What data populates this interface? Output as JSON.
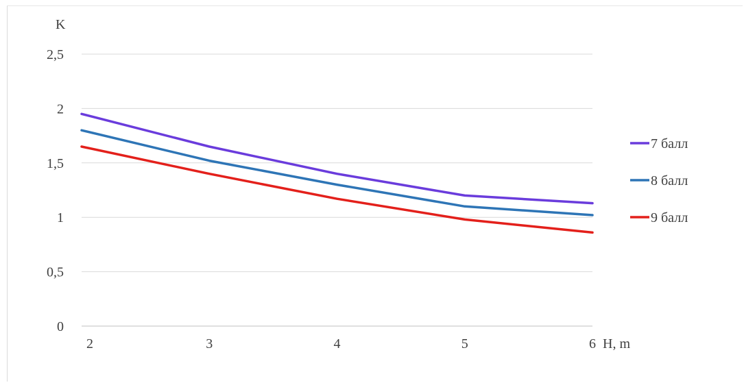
{
  "chart_data": {
    "type": "line",
    "ylabel": "K",
    "xlabel": "H, m",
    "x": [
      2,
      3,
      4,
      5,
      6
    ],
    "x_tick_labels": [
      "2",
      "3",
      "4",
      "5",
      "6"
    ],
    "y_tick_labels": [
      "0",
      "0,5",
      "1",
      "1,5",
      "2",
      "2,5"
    ],
    "y_ticks": [
      0,
      0.5,
      1,
      1.5,
      2,
      2.5
    ],
    "ylim": [
      0,
      2.5
    ],
    "grid": "horizontal",
    "legend_position": "right",
    "series": [
      {
        "name": "7 балл",
        "color": "#6a3cdc",
        "values": [
          1.95,
          1.65,
          1.4,
          1.2,
          1.13
        ]
      },
      {
        "name": "8 балл",
        "color": "#2e75b6",
        "values": [
          1.8,
          1.52,
          1.3,
          1.1,
          1.02
        ]
      },
      {
        "name": "9 балл",
        "color": "#e3201b",
        "values": [
          1.65,
          1.4,
          1.17,
          0.98,
          0.86
        ]
      }
    ]
  }
}
